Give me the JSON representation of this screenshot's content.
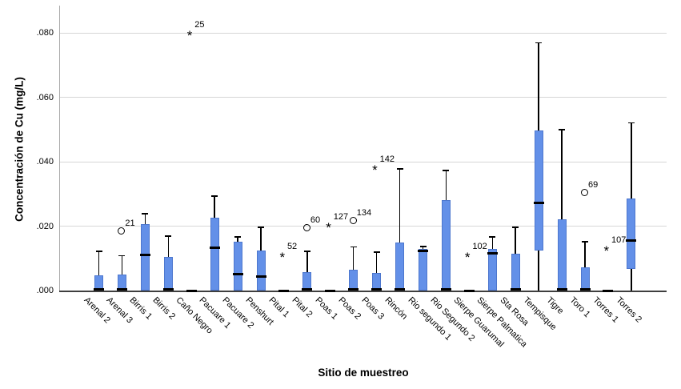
{
  "chart_data": {
    "type": "box",
    "title": "",
    "xlabel": "Sitio de muestreo",
    "ylabel": "Concentración de Cu (mg/L)",
    "grid": "horizontal",
    "legend": "none",
    "ylim": [
      0.0,
      0.0885
    ],
    "box_fill_color": "#6390e8",
    "box_border_color": "#4d77ce",
    "gridline_color": "#d6d6d6",
    "y_ticks": [
      {
        "label": ".000",
        "value": 0.0
      },
      {
        "label": ".020",
        "value": 0.02
      },
      {
        "label": ".040",
        "value": 0.04
      },
      {
        "label": ".060",
        "value": 0.06
      },
      {
        "label": ".080",
        "value": 0.08
      }
    ],
    "outlier_marker_legend": {
      "circle": "outlier",
      "star": "extreme value"
    },
    "columns": [
      {
        "label": "Arenal 2",
        "q1": 0.0,
        "q3": 0.0048,
        "median": 0.0004,
        "whisker_high": 0.0122,
        "whisker_low": null,
        "outliers": []
      },
      {
        "label": "Arenal 3",
        "q1": 0.0,
        "q3": 0.0049,
        "median": 0.0004,
        "whisker_high": 0.0108,
        "whisker_low": null,
        "outliers": [
          {
            "label": "21",
            "type": "circle",
            "value": 0.0185
          }
        ]
      },
      {
        "label": "Birris 1",
        "q1": 0.0,
        "q3": 0.0207,
        "median": 0.011,
        "whisker_high": 0.0238,
        "whisker_low": null,
        "outliers": []
      },
      {
        "label": "Birris 2",
        "q1": 0.0,
        "q3": 0.0105,
        "median": 0.0004,
        "whisker_high": 0.0169,
        "whisker_low": null,
        "outliers": []
      },
      {
        "label": "Caño Negro",
        "q1": 0.0,
        "q3": 0.0,
        "median": 0.0,
        "whisker_high": null,
        "whisker_low": null,
        "outliers": [
          {
            "label": "25",
            "type": "star",
            "value": 0.08
          }
        ]
      },
      {
        "label": "Pacuare 1",
        "q1": 0.0,
        "q3": 0.0226,
        "median": 0.0134,
        "whisker_high": 0.0293,
        "whisker_low": null,
        "outliers": []
      },
      {
        "label": "Pacuare 2",
        "q1": 0.0,
        "q3": 0.0151,
        "median": 0.0052,
        "whisker_high": 0.0166,
        "whisker_low": null,
        "outliers": []
      },
      {
        "label": "Penshurt",
        "q1": 0.0,
        "q3": 0.0125,
        "median": 0.0044,
        "whisker_high": 0.0196,
        "whisker_low": null,
        "outliers": []
      },
      {
        "label": "Pital 1",
        "q1": 0.0,
        "q3": 0.0,
        "median": 0.0,
        "whisker_high": null,
        "whisker_low": null,
        "outliers": [
          {
            "label": "52",
            "type": "star",
            "value": 0.0113
          }
        ]
      },
      {
        "label": "Pital 2",
        "q1": 0.0,
        "q3": 0.0057,
        "median": 0.0004,
        "whisker_high": 0.0121,
        "whisker_low": null,
        "outliers": [
          {
            "label": "60",
            "type": "circle",
            "value": 0.0194
          }
        ]
      },
      {
        "label": "Poas 1",
        "q1": 0.0,
        "q3": 0.0,
        "median": 0.0,
        "whisker_high": null,
        "whisker_low": null,
        "outliers": [
          {
            "label": "127",
            "type": "star",
            "value": 0.0204
          }
        ]
      },
      {
        "label": "Poas 2",
        "q1": 0.0,
        "q3": 0.0064,
        "median": 0.0004,
        "whisker_high": 0.0135,
        "whisker_low": null,
        "outliers": [
          {
            "label": "134",
            "type": "circle",
            "value": 0.0217
          }
        ]
      },
      {
        "label": "Poas 3",
        "q1": 0.0,
        "q3": 0.0055,
        "median": 0.0004,
        "whisker_high": 0.0119,
        "whisker_low": null,
        "outliers": [
          {
            "label": "142",
            "type": "star",
            "value": 0.0383
          }
        ]
      },
      {
        "label": "Rincón",
        "q1": 0.0,
        "q3": 0.015,
        "median": 0.0004,
        "whisker_high": 0.0378,
        "whisker_low": null,
        "outliers": []
      },
      {
        "label": "Rio segundo 1",
        "q1": 0.0,
        "q3": 0.0129,
        "median": 0.0124,
        "whisker_high": 0.0137,
        "whisker_low": null,
        "outliers": []
      },
      {
        "label": "Rio Segundo 2",
        "q1": 0.0,
        "q3": 0.0281,
        "median": 0.0004,
        "whisker_high": 0.0372,
        "whisker_low": null,
        "outliers": []
      },
      {
        "label": "Sierpe Guarumal",
        "q1": 0.0,
        "q3": 0.0,
        "median": 0.0,
        "whisker_high": null,
        "whisker_low": null,
        "outliers": [
          {
            "label": "102",
            "type": "star",
            "value": 0.0113
          }
        ]
      },
      {
        "label": "Sierpe Palmatica",
        "q1": 0.0,
        "q3": 0.013,
        "median": 0.0116,
        "whisker_high": 0.0167,
        "whisker_low": null,
        "outliers": []
      },
      {
        "label": "Sta Rosa",
        "q1": 0.0,
        "q3": 0.0115,
        "median": 0.0004,
        "whisker_high": 0.0196,
        "whisker_low": null,
        "outliers": []
      },
      {
        "label": "Tempisque",
        "q1": 0.0123,
        "q3": 0.0498,
        "median": 0.0272,
        "whisker_high": 0.0769,
        "whisker_low": 0.0,
        "outliers": []
      },
      {
        "label": "Tigre",
        "q1": 0.0,
        "q3": 0.0221,
        "median": 0.0004,
        "whisker_high": 0.05,
        "whisker_low": null,
        "outliers": []
      },
      {
        "label": "Toro 1",
        "q1": 0.0,
        "q3": 0.0072,
        "median": 0.0004,
        "whisker_high": 0.0152,
        "whisker_low": null,
        "outliers": [
          {
            "label": "69",
            "type": "circle",
            "value": 0.0302
          }
        ]
      },
      {
        "label": "Torres 1",
        "q1": 0.0,
        "q3": 0.0,
        "median": 0.0,
        "whisker_high": null,
        "whisker_low": null,
        "outliers": [
          {
            "label": "107",
            "type": "star",
            "value": 0.0131
          }
        ]
      },
      {
        "label": "Torres 2",
        "q1": 0.0067,
        "q3": 0.0285,
        "median": 0.0156,
        "whisker_high": 0.052,
        "whisker_low": 0.0,
        "outliers": []
      }
    ]
  }
}
